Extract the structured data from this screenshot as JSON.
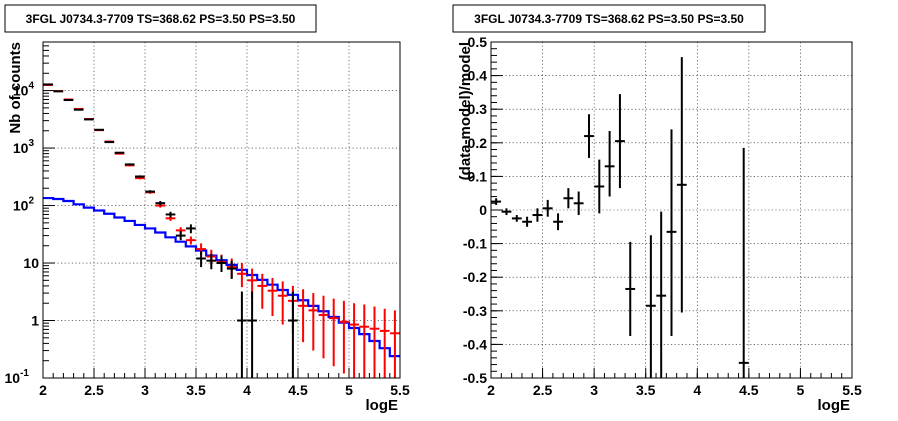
{
  "chart_data": [
    {
      "type": "line",
      "title": "3FGL J0734.3-7709 TS=368.62 PS=3.50 PS=3.50",
      "xlabel": "logE",
      "ylabel": "Nb of counts",
      "xlim": [
        2,
        5.5
      ],
      "ylim": [
        0.1,
        70000
      ],
      "yscale": "log",
      "grid": true,
      "x_ticks": [
        "2",
        "2.5",
        "3",
        "3.5",
        "4",
        "4.5",
        "5",
        "5.5"
      ],
      "y_ticks": [
        "10^-1",
        "1",
        "10",
        "10^2",
        "10^3",
        "10^4"
      ],
      "series": [
        {
          "color": "#0000ff",
          "kind": "step",
          "x_edges": [
            2.0,
            2.1,
            2.2,
            2.3,
            2.4,
            2.5,
            2.6,
            2.7,
            2.8,
            2.9,
            3.0,
            3.1,
            3.2,
            3.3,
            3.4,
            3.5,
            3.6,
            3.7,
            3.8,
            3.9,
            4.0,
            4.1,
            4.2,
            4.3,
            4.4,
            4.5,
            4.6,
            4.7,
            4.8,
            4.9,
            5.0,
            5.1,
            5.2,
            5.3,
            5.4,
            5.5
          ],
          "values": [
            135,
            130,
            120,
            105,
            92,
            82,
            72,
            62,
            54,
            46,
            40,
            34,
            28,
            23.5,
            19.5,
            16.5,
            13.5,
            11.2,
            9.3,
            7.6,
            6.2,
            5.1,
            4.2,
            3.4,
            2.8,
            2.25,
            1.8,
            1.45,
            1.15,
            0.92,
            0.74,
            0.58,
            0.44,
            0.33,
            0.24
          ]
        },
        {
          "color": "#ff0000",
          "kind": "errorbar",
          "x": [
            2.05,
            2.15,
            2.25,
            2.35,
            2.45,
            2.55,
            2.65,
            2.75,
            2.85,
            2.95,
            3.05,
            3.15,
            3.25,
            3.35,
            3.45,
            3.55,
            3.65,
            3.75,
            3.85,
            3.95,
            4.05,
            4.15,
            4.25,
            4.35,
            4.45,
            4.55,
            4.65,
            4.75,
            4.85,
            4.95,
            5.05,
            5.15,
            5.25,
            5.35,
            5.45
          ],
          "y": [
            12500,
            9800,
            7000,
            4800,
            3200,
            2050,
            1300,
            800,
            500,
            300,
            170,
            100,
            60,
            37,
            25,
            17.5,
            13,
            10.5,
            8.5,
            6.5,
            5,
            4,
            3.3,
            2.7,
            2.2,
            1.8,
            1.5,
            1.25,
            1.1,
            0.95,
            0.85,
            0.78,
            0.72,
            0.66,
            0.6
          ],
          "ylow": [
            12300,
            9600,
            6850,
            4700,
            3120,
            2000,
            1260,
            770,
            480,
            285,
            160,
            92,
            54,
            32,
            21,
            13.5,
            9.5,
            7,
            5.4,
            3.8,
            2.5,
            1.6,
            1.2,
            0.85,
            0.6,
            0.42,
            0.3,
            0.22,
            0.16,
            0.12,
            0.1,
            0.1,
            0.1,
            0.1,
            0.1
          ],
          "yhigh": [
            12700,
            10000,
            7150,
            4900,
            3280,
            2100,
            1340,
            830,
            520,
            315,
            180,
            108,
            66,
            42,
            29,
            22,
            17,
            14,
            12,
            10,
            8,
            6.5,
            5.5,
            4.8,
            4,
            3.5,
            3,
            2.7,
            2.4,
            2.2,
            2,
            1.9,
            1.75,
            1.6,
            1.5
          ]
        },
        {
          "color": "#000000",
          "kind": "errorbar",
          "x": [
            2.05,
            2.15,
            2.25,
            2.35,
            2.45,
            2.55,
            2.65,
            2.75,
            2.85,
            2.95,
            3.05,
            3.15,
            3.25,
            3.35,
            3.45,
            3.55,
            3.65,
            3.75,
            3.85,
            3.95,
            4.05,
            4.45
          ],
          "y": [
            12800,
            9700,
            6850,
            4650,
            3150,
            2080,
            1270,
            830,
            520,
            320,
            175,
            110,
            70,
            30,
            40,
            12,
            11,
            10,
            8,
            1,
            1,
            1
          ],
          "ylow": [
            12600,
            9500,
            6700,
            4550,
            3080,
            2030,
            1240,
            805,
            500,
            305,
            165,
            100,
            62,
            25,
            33,
            8.5,
            7.8,
            7,
            5.3,
            0.1,
            0.1,
            0.1
          ],
          "yhigh": [
            13000,
            9900,
            7000,
            4750,
            3220,
            2130,
            1300,
            855,
            540,
            335,
            185,
            120,
            78,
            36,
            47,
            16,
            14.5,
            13.5,
            11,
            3.2,
            3.2,
            3.2
          ]
        }
      ]
    },
    {
      "type": "scatter",
      "title": "3FGL J0734.3-7709 TS=368.62 PS=3.50 PS=3.50",
      "xlabel": "logE",
      "ylabel": "(data-model)/model",
      "xlim": [
        2,
        5.5
      ],
      "ylim": [
        -0.5,
        0.5
      ],
      "grid": true,
      "x_ticks": [
        "2",
        "2.5",
        "3",
        "3.5",
        "4",
        "4.5",
        "5",
        "5.5"
      ],
      "y_ticks": [
        "-0.5",
        "-0.4",
        "-0.3",
        "-0.2",
        "-0.1",
        "0",
        "0.1",
        "0.2",
        "0.3",
        "0.4",
        "0.5"
      ],
      "series": [
        {
          "color": "#000000",
          "kind": "errorbar",
          "x": [
            2.05,
            2.15,
            2.25,
            2.35,
            2.45,
            2.55,
            2.65,
            2.75,
            2.85,
            2.95,
            3.05,
            3.15,
            3.25,
            3.35,
            3.55,
            3.65,
            3.75,
            3.85,
            4.45
          ],
          "y": [
            0.025,
            -0.005,
            -0.025,
            -0.035,
            -0.015,
            0.005,
            -0.035,
            0.035,
            0.02,
            0.22,
            0.07,
            0.13,
            0.205,
            -0.235,
            -0.285,
            -0.255,
            -0.065,
            0.075,
            -0.455
          ],
          "ylow": [
            0.015,
            -0.015,
            -0.035,
            -0.05,
            -0.035,
            -0.02,
            -0.06,
            0.005,
            -0.015,
            0.155,
            -0.01,
            0.04,
            0.065,
            -0.375,
            -0.5,
            -0.5,
            -0.375,
            -0.305,
            -0.5
          ],
          "yhigh": [
            0.035,
            0.005,
            -0.015,
            -0.02,
            0.005,
            0.03,
            -0.01,
            0.065,
            0.055,
            0.285,
            0.15,
            0.235,
            0.345,
            -0.095,
            -0.075,
            -0.005,
            0.24,
            0.455,
            0.185
          ]
        }
      ]
    }
  ]
}
